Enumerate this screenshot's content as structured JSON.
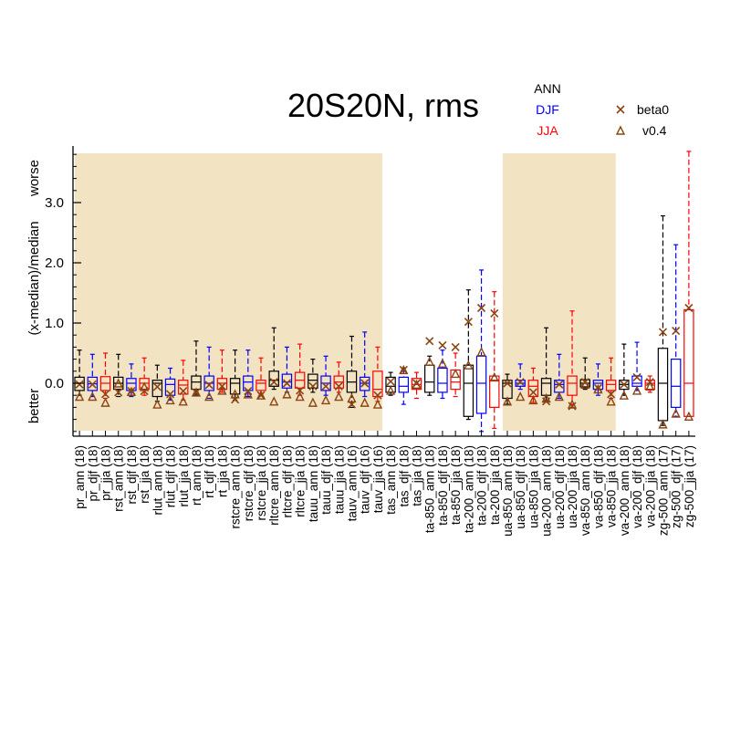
{
  "chart_data": {
    "type": "box",
    "title": "20S20N, rms",
    "ylabel": "(x-median)/median",
    "ylabel_top": "worse",
    "ylabel_bottom": "better",
    "ylim": [
      -0.8,
      3.9
    ],
    "yticks": [
      0.0,
      1.0,
      2.0,
      3.0
    ],
    "ytick_labels": [
      "0.0",
      "1.0",
      "2.0",
      "3.0"
    ],
    "legend": {
      "seasons": [
        {
          "label": "ANN",
          "color": "#000000"
        },
        {
          "label": "DJF",
          "color": "#0000ff"
        },
        {
          "label": "JJA",
          "color": "#ff0000"
        }
      ],
      "markers": [
        {
          "label": "beta0",
          "symbol": "x",
          "color": "#8b4513"
        },
        {
          "label": "v0.4",
          "symbol": "triangle",
          "color": "#8b4513"
        }
      ]
    },
    "shaded_groups": [
      "pr",
      "rst",
      "rlut",
      "rt",
      "rstcre",
      "rltcre",
      "tauu",
      "tauv",
      "ua-850",
      "ua-200",
      "va-850"
    ],
    "categories": [
      {
        "label": "pr_ann (18)",
        "season": "ann",
        "group": "pr",
        "min": -0.2,
        "q1": -0.12,
        "median": 0.0,
        "q3": 0.1,
        "max": 0.55,
        "beta0": -0.02,
        "v04": -0.22
      },
      {
        "label": "pr_djf (18)",
        "season": "djf",
        "group": "pr",
        "min": -0.22,
        "q1": -0.12,
        "median": -0.01,
        "q3": 0.1,
        "max": 0.48,
        "beta0": -0.02,
        "v04": -0.22
      },
      {
        "label": "pr_jja (18)",
        "season": "jja",
        "group": "pr",
        "min": -0.25,
        "q1": -0.12,
        "median": 0.0,
        "q3": 0.11,
        "max": 0.5,
        "beta0": -0.18,
        "v04": -0.32
      },
      {
        "label": "rst_ann (18)",
        "season": "ann",
        "group": "rst",
        "min": -0.22,
        "q1": -0.1,
        "median": 0.0,
        "q3": 0.1,
        "max": 0.48,
        "beta0": -0.15,
        "v04": 0.0
      },
      {
        "label": "rst_djf (18)",
        "season": "djf",
        "group": "rst",
        "min": -0.22,
        "q1": -0.12,
        "median": 0.0,
        "q3": 0.08,
        "max": 0.32,
        "beta0": -0.13,
        "v04": -0.14
      },
      {
        "label": "rst_jja (18)",
        "season": "jja",
        "group": "rst",
        "min": -0.2,
        "q1": -0.1,
        "median": 0.0,
        "q3": 0.08,
        "max": 0.42,
        "beta0": -0.13,
        "v04": -0.06
      },
      {
        "label": "rlut_ann (18)",
        "season": "ann",
        "group": "rlut",
        "min": -0.3,
        "q1": -0.22,
        "median": 0.0,
        "q3": 0.05,
        "max": 0.3,
        "beta0": -0.06,
        "v04": -0.35
      },
      {
        "label": "rlut_djf (18)",
        "season": "djf",
        "group": "rlut",
        "min": -0.28,
        "q1": -0.2,
        "median": -0.02,
        "q3": 0.07,
        "max": 0.25,
        "beta0": -0.18,
        "v04": -0.28
      },
      {
        "label": "rlut_jja (18)",
        "season": "jja",
        "group": "rlut",
        "min": -0.28,
        "q1": -0.18,
        "median": -0.03,
        "q3": 0.05,
        "max": 0.38,
        "beta0": -0.13,
        "v04": -0.3
      },
      {
        "label": "rt_ann (18)",
        "season": "ann",
        "group": "rt",
        "min": -0.2,
        "q1": -0.1,
        "median": 0.02,
        "q3": 0.12,
        "max": 0.7,
        "beta0": -0.15,
        "v04": -0.15
      },
      {
        "label": "rt_djf (18)",
        "season": "djf",
        "group": "rt",
        "min": -0.25,
        "q1": -0.12,
        "median": 0.0,
        "q3": 0.12,
        "max": 0.6,
        "beta0": -0.03,
        "v04": -0.22
      },
      {
        "label": "rt_jja (18)",
        "season": "jja",
        "group": "rt",
        "min": -0.15,
        "q1": -0.1,
        "median": 0.0,
        "q3": 0.08,
        "max": 0.55,
        "beta0": -0.05,
        "v04": -0.12
      },
      {
        "label": "rstcre_ann (18)",
        "season": "ann",
        "group": "rstcre",
        "min": -0.28,
        "q1": -0.18,
        "median": 0.0,
        "q3": 0.08,
        "max": 0.55,
        "beta0": -0.27,
        "v04": -0.18
      },
      {
        "label": "rstcre_djf (18)",
        "season": "djf",
        "group": "rstcre",
        "min": -0.22,
        "q1": -0.12,
        "median": 0.02,
        "q3": 0.12,
        "max": 0.55,
        "beta0": -0.13,
        "v04": -0.18
      },
      {
        "label": "rstcre_jja (18)",
        "season": "jja",
        "group": "rstcre",
        "min": -0.2,
        "q1": -0.12,
        "median": 0.0,
        "q3": 0.05,
        "max": 0.42,
        "beta0": -0.2,
        "v04": -0.2
      },
      {
        "label": "rltcre_ann (18)",
        "season": "ann",
        "group": "rltcre",
        "min": -0.1,
        "q1": -0.05,
        "median": 0.05,
        "q3": 0.2,
        "max": 0.92,
        "beta0": 0.02,
        "v04": -0.3
      },
      {
        "label": "rltcre_djf (18)",
        "season": "djf",
        "group": "rltcre",
        "min": -0.15,
        "q1": -0.08,
        "median": 0.02,
        "q3": 0.15,
        "max": 0.6,
        "beta0": 0.0,
        "v04": -0.18
      },
      {
        "label": "rltcre_jja (18)",
        "season": "jja",
        "group": "rltcre",
        "min": -0.2,
        "q1": -0.08,
        "median": 0.05,
        "q3": 0.18,
        "max": 0.65,
        "beta0": -0.12,
        "v04": -0.22
      },
      {
        "label": "tauu_ann (18)",
        "season": "ann",
        "group": "tauu",
        "min": -0.15,
        "q1": -0.08,
        "median": 0.05,
        "q3": 0.15,
        "max": 0.4,
        "beta0": -0.05,
        "v04": -0.32
      },
      {
        "label": "tauu_djf (18)",
        "season": "djf",
        "group": "tauu",
        "min": -0.2,
        "q1": -0.12,
        "median": 0.0,
        "q3": 0.12,
        "max": 0.45,
        "beta0": -0.05,
        "v04": -0.28
      },
      {
        "label": "tauu_jja (18)",
        "season": "jja",
        "group": "tauu",
        "min": -0.15,
        "q1": -0.08,
        "median": 0.02,
        "q3": 0.12,
        "max": 0.35,
        "beta0": -0.05,
        "v04": -0.22
      },
      {
        "label": "tauv_ann (16)",
        "season": "ann",
        "group": "tauv",
        "min": -0.4,
        "q1": -0.15,
        "median": 0.02,
        "q3": 0.2,
        "max": 0.78,
        "beta0": -0.35,
        "v04": -0.25
      },
      {
        "label": "tauv_djf (16)",
        "season": "djf",
        "group": "tauv",
        "min": -0.22,
        "q1": -0.12,
        "median": 0.0,
        "q3": 0.1,
        "max": 0.85,
        "beta0": 0.0,
        "v04": -0.32
      },
      {
        "label": "tauv_jja (16)",
        "season": "jja",
        "group": "tauv",
        "min": -0.3,
        "q1": -0.22,
        "median": -0.1,
        "q3": 0.2,
        "max": 0.6,
        "beta0": -0.2,
        "v04": -0.35
      },
      {
        "label": "tas_ann (18)",
        "season": "ann",
        "group": "tas",
        "min": -0.2,
        "q1": -0.15,
        "median": -0.05,
        "q3": 0.1,
        "max": 0.18,
        "beta0": 0.03,
        "v04": -0.12
      },
      {
        "label": "tas_djf (18)",
        "season": "djf",
        "group": "tas",
        "min": -0.35,
        "q1": -0.15,
        "median": -0.05,
        "q3": 0.1,
        "max": 0.25,
        "beta0": 0.22,
        "v04": 0.22
      },
      {
        "label": "tas_jja (18)",
        "season": "jja",
        "group": "tas",
        "min": -0.25,
        "q1": -0.1,
        "median": -0.02,
        "q3": 0.08,
        "max": 0.18,
        "beta0": 0.0,
        "v04": -0.02
      },
      {
        "label": "ta-850_ann (18)",
        "season": "ann",
        "group": "ta-850",
        "min": -0.2,
        "q1": -0.15,
        "median": 0.02,
        "q3": 0.3,
        "max": 0.45,
        "beta0": 0.7,
        "v04": 0.36
      },
      {
        "label": "ta-850_djf (18)",
        "season": "djf",
        "group": "ta-850",
        "min": -0.25,
        "q1": -0.15,
        "median": 0.0,
        "q3": 0.25,
        "max": 0.55,
        "beta0": 0.63,
        "v04": 0.33
      },
      {
        "label": "ta-850_jja (18)",
        "season": "jja",
        "group": "ta-850",
        "min": -0.22,
        "q1": -0.1,
        "median": 0.02,
        "q3": 0.22,
        "max": 0.5,
        "beta0": 0.6,
        "v04": 0.16
      },
      {
        "label": "ta-200_ann (18)",
        "season": "ann",
        "group": "ta-200",
        "min": -0.6,
        "q1": -0.55,
        "median": 0.0,
        "q3": 0.3,
        "max": 1.55,
        "beta0": 1.02,
        "v04": 0.3
      },
      {
        "label": "ta-200_djf (18)",
        "season": "djf",
        "group": "ta-200",
        "min": -0.8,
        "q1": -0.5,
        "median": 0.0,
        "q3": 0.45,
        "max": 1.88,
        "beta0": 1.25,
        "v04": 0.52
      },
      {
        "label": "ta-200_jja (18)",
        "season": "jja",
        "group": "ta-200",
        "min": -0.75,
        "q1": -0.4,
        "median": 0.05,
        "q3": 0.12,
        "max": 1.52,
        "beta0": 1.16,
        "v04": 0.1
      },
      {
        "label": "ua-850_ann (18)",
        "season": "ann",
        "group": "ua-850",
        "min": -0.35,
        "q1": -0.25,
        "median": 0.0,
        "q3": 0.05,
        "max": 0.15,
        "beta0": 0.0,
        "v04": -0.3
      },
      {
        "label": "ua-850_djf (18)",
        "season": "djf",
        "group": "ua-850",
        "min": -0.1,
        "q1": -0.05,
        "median": 0.0,
        "q3": 0.05,
        "max": 0.32,
        "beta0": 0.02,
        "v04": -0.22
      },
      {
        "label": "ua-850_jja (18)",
        "season": "jja",
        "group": "ua-850",
        "min": -0.32,
        "q1": -0.22,
        "median": -0.05,
        "q3": 0.05,
        "max": 0.25,
        "beta0": -0.15,
        "v04": -0.28
      },
      {
        "label": "ua-200_ann (18)",
        "season": "ann",
        "group": "ua-200",
        "min": -0.3,
        "q1": -0.2,
        "median": 0.0,
        "q3": 0.08,
        "max": 0.92,
        "beta0": -0.3,
        "v04": -0.25
      },
      {
        "label": "ua-200_djf (18)",
        "season": "djf",
        "group": "ua-200",
        "min": -0.25,
        "q1": -0.15,
        "median": -0.02,
        "q3": 0.05,
        "max": 0.48,
        "beta0": -0.02,
        "v04": -0.22
      },
      {
        "label": "ua-200_jja (18)",
        "season": "jja",
        "group": "ua-200",
        "min": -0.35,
        "q1": -0.2,
        "median": 0.0,
        "q3": 0.12,
        "max": 1.2,
        "beta0": -0.38,
        "v04": -0.35
      },
      {
        "label": "va-850_ann (18)",
        "season": "ann",
        "group": "va-850",
        "min": -0.1,
        "q1": -0.06,
        "median": 0.0,
        "q3": 0.06,
        "max": 0.42,
        "beta0": 0.02,
        "v04": -0.02
      },
      {
        "label": "va-850_djf (18)",
        "season": "djf",
        "group": "va-850",
        "min": -0.2,
        "q1": -0.1,
        "median": 0.0,
        "q3": 0.05,
        "max": 0.32,
        "beta0": -0.08,
        "v04": -0.1
      },
      {
        "label": "va-850_jja (18)",
        "season": "jja",
        "group": "va-850",
        "min": -0.25,
        "q1": -0.12,
        "median": -0.02,
        "q3": 0.05,
        "max": 0.42,
        "beta0": -0.18,
        "v04": -0.3
      },
      {
        "label": "va-200_ann (18)",
        "season": "ann",
        "group": "va-200",
        "min": -0.2,
        "q1": -0.1,
        "median": -0.02,
        "q3": 0.05,
        "max": 0.65,
        "beta0": -0.02,
        "v04": -0.2
      },
      {
        "label": "va-200_djf (18)",
        "season": "djf",
        "group": "va-200",
        "min": -0.12,
        "q1": -0.05,
        "median": 0.0,
        "q3": 0.12,
        "max": 0.68,
        "beta0": 0.1,
        "v04": -0.12
      },
      {
        "label": "va-200_jja (18)",
        "season": "jja",
        "group": "va-200",
        "min": -0.15,
        "q1": -0.1,
        "median": 0.0,
        "q3": 0.05,
        "max": 0.12,
        "beta0": 0.02,
        "v04": -0.05
      },
      {
        "label": "zg-500_ann (17)",
        "season": "ann",
        "group": "zg-500",
        "min": -0.7,
        "q1": -0.62,
        "median": 0.0,
        "q3": 0.58,
        "max": 2.78,
        "beta0": 0.85,
        "v04": -0.68
      },
      {
        "label": "zg-500_djf (17)",
        "season": "djf",
        "group": "zg-500",
        "min": -0.55,
        "q1": -0.4,
        "median": -0.05,
        "q3": 0.4,
        "max": 2.3,
        "beta0": 0.87,
        "v04": -0.5
      },
      {
        "label": "zg-500_jja (17)",
        "season": "jja",
        "group": "zg-500",
        "min": -0.55,
        "q1": -0.55,
        "median": 0.0,
        "q3": 1.22,
        "max": 3.85,
        "beta0": 1.25,
        "v04": -0.55
      }
    ],
    "colors": {
      "ann": "#000000",
      "djf": "#0000ff",
      "jja": "#ff0000",
      "marker": "#8b4513",
      "shade": "#f2e3c2"
    }
  }
}
